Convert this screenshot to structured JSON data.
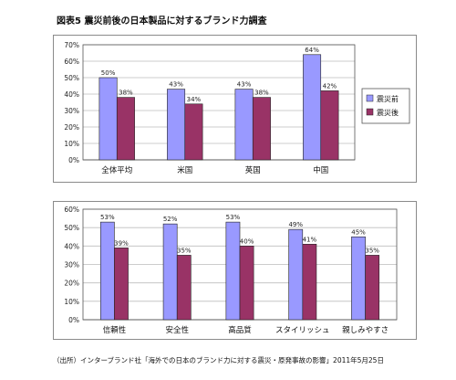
{
  "figure_title": "図表5 震災前後の日本製品に対するブランド力調査",
  "source_note": "（出所）インターブランド社「海外での日本のブランド力に対する震災・原発事故の影響」2011年5月25日",
  "colors": {
    "before": "#9999ff",
    "after": "#993366"
  },
  "chart_data": [
    {
      "type": "bar",
      "categories": [
        "全体平均",
        "米国",
        "英国",
        "中国"
      ],
      "series": [
        {
          "name": "震災前",
          "values": [
            50,
            43,
            43,
            64
          ],
          "labels": [
            "50%",
            "43%",
            "43%",
            "64%"
          ]
        },
        {
          "name": "震災後",
          "values": [
            38,
            34,
            38,
            42
          ],
          "labels": [
            "38%",
            "34%",
            "38%",
            "42%"
          ]
        }
      ],
      "ylim": [
        0,
        70
      ],
      "yticks": [
        "0%",
        "10%",
        "20%",
        "30%",
        "40%",
        "50%",
        "60%",
        "70%"
      ],
      "grid": true,
      "legend": "right"
    },
    {
      "type": "bar",
      "categories": [
        "信頼性",
        "安全性",
        "高品質",
        "スタイリッシュ",
        "親しみやすさ"
      ],
      "series": [
        {
          "name": "震災前",
          "values": [
            53,
            52,
            53,
            49,
            45
          ],
          "labels": [
            "53%",
            "52%",
            "53%",
            "49%",
            "45%"
          ]
        },
        {
          "name": "震災後",
          "values": [
            39,
            35,
            40,
            41,
            35
          ],
          "labels": [
            "39%",
            "35%",
            "40%",
            "41%",
            "35%"
          ]
        }
      ],
      "ylim": [
        0,
        60
      ],
      "yticks": [
        "0%",
        "10%",
        "20%",
        "30%",
        "40%",
        "50%",
        "60%"
      ],
      "grid": true,
      "legend": "none"
    }
  ]
}
